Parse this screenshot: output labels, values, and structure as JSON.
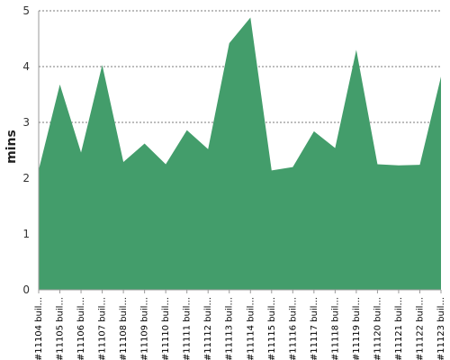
{
  "chart_data": {
    "type": "area",
    "title": "",
    "xlabel": "",
    "ylabel": "mins",
    "ylim": [
      0,
      5
    ],
    "yticks": [
      0,
      1,
      2,
      3,
      4,
      5
    ],
    "grid": true,
    "legend": "none",
    "categories": [
      "#11104 buil...",
      "#11105 buil...",
      "#11106 buil...",
      "#11107 buil...",
      "#11108 buil...",
      "#11109 buil...",
      "#11110 buil...",
      "#11111 buil...",
      "#11112 buil...",
      "#11113 buil...",
      "#11114 buil...",
      "#11115 buil...",
      "#11116 buil...",
      "#11117 buil...",
      "#11118 buil...",
      "#11119 buil...",
      "#11120 buil...",
      "#11121 buil...",
      "#11122 buil...",
      "#11123 buil..."
    ],
    "series": [
      {
        "color": "#439d6b",
        "values": [
          2.15,
          3.68,
          2.46,
          4.03,
          2.29,
          2.62,
          2.25,
          2.86,
          2.52,
          4.42,
          4.88,
          2.14,
          2.2,
          2.84,
          2.54,
          4.3,
          2.25,
          2.23,
          2.24,
          3.82
        ]
      }
    ]
  }
}
